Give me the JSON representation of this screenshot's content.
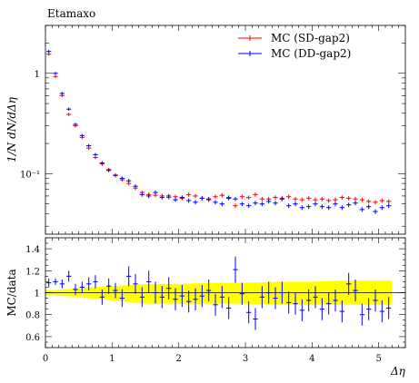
{
  "chart_data": {
    "type": "scatter",
    "title": "Etamaxo",
    "xlabel": "Δη",
    "x_ticks": [
      "0",
      "1",
      "2",
      "3",
      "4",
      "5"
    ],
    "xlim": [
      0,
      5.4
    ],
    "top_panel": {
      "ylabel": "1/N dN/dΔη",
      "y_scale": "log",
      "ylim": [
        0.025,
        3.0
      ],
      "y_ticks": [
        {
          "value": 1,
          "label": "1"
        },
        {
          "value": 0.1,
          "label": "10⁻¹"
        }
      ],
      "legend_position": "top-right",
      "series": [
        {
          "name": "MC (SD-gap2)",
          "color": "#ff0000",
          "x": [
            0.05,
            0.15,
            0.25,
            0.35,
            0.45,
            0.55,
            0.65,
            0.75,
            0.85,
            0.95,
            1.05,
            1.15,
            1.25,
            1.35,
            1.45,
            1.55,
            1.65,
            1.75,
            1.85,
            1.95,
            2.05,
            2.15,
            2.25,
            2.35,
            2.45,
            2.55,
            2.65,
            2.75,
            2.85,
            2.95,
            3.05,
            3.15,
            3.25,
            3.35,
            3.45,
            3.55,
            3.65,
            3.75,
            3.85,
            3.95,
            4.05,
            4.15,
            4.25,
            4.35,
            4.45,
            4.55,
            4.65,
            4.75,
            4.85,
            4.95,
            5.05,
            5.15
          ],
          "y": [
            1.55,
            0.93,
            0.6,
            0.39,
            0.3,
            0.23,
            0.18,
            0.145,
            0.125,
            0.11,
            0.097,
            0.087,
            0.08,
            0.072,
            0.065,
            0.062,
            0.061,
            0.06,
            0.058,
            0.059,
            0.057,
            0.062,
            0.06,
            0.057,
            0.055,
            0.059,
            0.061,
            0.058,
            0.048,
            0.059,
            0.058,
            0.062,
            0.056,
            0.056,
            0.058,
            0.057,
            0.059,
            0.056,
            0.055,
            0.057,
            0.055,
            0.056,
            0.054,
            0.055,
            0.058,
            0.057,
            0.056,
            0.055,
            0.053,
            0.052,
            0.054,
            0.053
          ]
        },
        {
          "name": "MC (DD-gap2)",
          "color": "#0000ff",
          "x": [
            0.05,
            0.15,
            0.25,
            0.35,
            0.45,
            0.55,
            0.65,
            0.75,
            0.85,
            0.95,
            1.05,
            1.15,
            1.25,
            1.35,
            1.45,
            1.55,
            1.65,
            1.75,
            1.85,
            1.95,
            2.05,
            2.15,
            2.25,
            2.35,
            2.45,
            2.55,
            2.65,
            2.75,
            2.85,
            2.95,
            3.05,
            3.15,
            3.25,
            3.35,
            3.45,
            3.55,
            3.65,
            3.75,
            3.85,
            3.95,
            4.05,
            4.15,
            4.25,
            4.35,
            4.45,
            4.55,
            4.65,
            4.75,
            4.85,
            4.95,
            5.05,
            5.15
          ],
          "y": [
            1.65,
            1.0,
            0.63,
            0.44,
            0.31,
            0.24,
            0.19,
            0.155,
            0.128,
            0.108,
            0.096,
            0.09,
            0.085,
            0.075,
            0.062,
            0.06,
            0.065,
            0.058,
            0.06,
            0.055,
            0.058,
            0.054,
            0.052,
            0.057,
            0.056,
            0.052,
            0.05,
            0.057,
            0.056,
            0.05,
            0.048,
            0.051,
            0.05,
            0.053,
            0.051,
            0.056,
            0.048,
            0.05,
            0.046,
            0.047,
            0.05,
            0.047,
            0.046,
            0.05,
            0.046,
            0.049,
            0.051,
            0.044,
            0.047,
            0.042,
            0.046,
            0.048
          ]
        }
      ]
    },
    "ratio_panel": {
      "ylabel": "MC/data",
      "ylim": [
        0.5,
        1.5
      ],
      "y_ticks": [
        {
          "value": 0.6,
          "label": "0.6"
        },
        {
          "value": 0.8,
          "label": "0.8"
        },
        {
          "value": 1.0,
          "label": "1"
        },
        {
          "value": 1.2,
          "label": "1.2"
        },
        {
          "value": 1.4,
          "label": "1.4"
        }
      ],
      "reference_line": 1.0,
      "band": {
        "color": "#ffff00",
        "x": [
          0.0,
          0.5,
          1.0,
          1.5,
          2.0,
          2.5,
          3.0,
          3.5,
          4.0,
          4.5,
          5.0,
          5.2
        ],
        "lower": [
          0.98,
          0.96,
          0.93,
          0.9,
          0.9,
          0.9,
          0.9,
          0.89,
          0.89,
          0.89,
          0.89,
          0.89
        ],
        "upper": [
          1.02,
          1.04,
          1.06,
          1.08,
          1.08,
          1.09,
          1.09,
          1.1,
          1.1,
          1.11,
          1.11,
          1.11
        ]
      },
      "series": [
        {
          "name": "MC (DD-gap2)",
          "color": "#0000ff",
          "x": [
            0.05,
            0.15,
            0.25,
            0.35,
            0.45,
            0.55,
            0.65,
            0.75,
            0.85,
            0.95,
            1.05,
            1.15,
            1.25,
            1.35,
            1.45,
            1.55,
            1.65,
            1.75,
            1.85,
            1.95,
            2.05,
            2.15,
            2.25,
            2.35,
            2.45,
            2.55,
            2.65,
            2.75,
            2.85,
            2.95,
            3.05,
            3.15,
            3.25,
            3.35,
            3.45,
            3.55,
            3.65,
            3.75,
            3.85,
            3.95,
            4.05,
            4.15,
            4.25,
            4.35,
            4.45,
            4.55,
            4.65,
            4.75,
            4.85,
            4.95,
            5.05,
            5.15
          ],
          "y": [
            1.09,
            1.1,
            1.08,
            1.15,
            1.03,
            1.05,
            1.08,
            1.1,
            0.96,
            1.06,
            1.02,
            0.95,
            1.15,
            1.08,
            0.96,
            1.1,
            1.0,
            0.96,
            1.04,
            0.94,
            0.97,
            0.92,
            0.94,
            0.97,
            1.02,
            0.89,
            0.96,
            0.86,
            1.21,
            0.99,
            0.82,
            0.76,
            0.96,
            1.0,
            0.95,
            1.0,
            0.91,
            0.9,
            0.84,
            0.93,
            0.96,
            0.85,
            0.9,
            0.93,
            0.83,
            1.08,
            1.02,
            0.8,
            0.85,
            0.93,
            0.83,
            0.86
          ],
          "yerr": [
            0.04,
            0.03,
            0.04,
            0.05,
            0.05,
            0.05,
            0.06,
            0.06,
            0.07,
            0.07,
            0.07,
            0.08,
            0.09,
            0.09,
            0.09,
            0.1,
            0.1,
            0.1,
            0.1,
            0.1,
            0.1,
            0.1,
            0.1,
            0.1,
            0.1,
            0.1,
            0.1,
            0.1,
            0.12,
            0.1,
            0.1,
            0.1,
            0.1,
            0.1,
            0.1,
            0.1,
            0.1,
            0.1,
            0.1,
            0.1,
            0.1,
            0.1,
            0.1,
            0.1,
            0.1,
            0.1,
            0.1,
            0.1,
            0.1,
            0.1,
            0.1,
            0.1
          ]
        }
      ]
    }
  }
}
